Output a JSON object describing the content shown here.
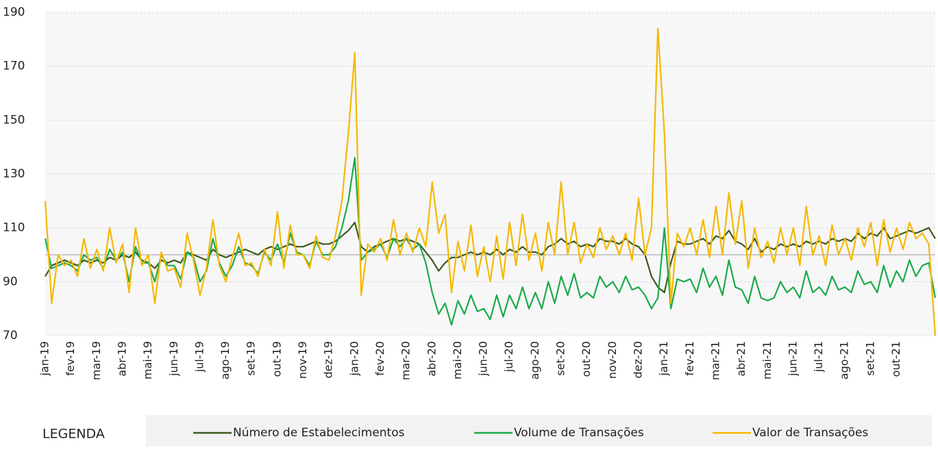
{
  "chart_data": {
    "type": "line",
    "legend_title": "LEGENDA",
    "ylim": [
      70,
      190
    ],
    "yticks": [
      70,
      90,
      110,
      130,
      150,
      170,
      190
    ],
    "grid": true,
    "hline": 100,
    "categories": [
      "jan-19",
      null,
      null,
      null,
      "fev-19",
      null,
      null,
      null,
      "mar-19",
      null,
      null,
      null,
      "abr-19",
      null,
      null,
      null,
      "mai-19",
      null,
      null,
      null,
      "jun-19",
      null,
      null,
      null,
      "jul-19",
      null,
      null,
      null,
      "ago-19",
      null,
      null,
      null,
      "set-19",
      null,
      null,
      null,
      "out-19",
      null,
      null,
      null,
      "nov-19",
      null,
      null,
      null,
      "dez-19",
      null,
      null,
      null,
      "jan-20",
      null,
      null,
      null,
      "fev-20",
      null,
      null,
      null,
      "mar-20",
      null,
      null,
      null,
      "abr-20",
      null,
      null,
      null,
      "mai-20",
      null,
      null,
      null,
      "jun-20",
      null,
      null,
      null,
      "jul-20",
      null,
      null,
      null,
      "ago-20",
      null,
      null,
      null,
      "set-20",
      null,
      null,
      null,
      "out-20",
      null,
      null,
      null,
      "nov-20",
      null,
      null,
      null,
      "dez-20",
      null,
      null,
      null,
      "jan-21",
      null,
      null,
      null,
      "fev-21",
      null,
      null,
      null,
      "mar-21",
      null,
      null,
      null,
      "abr-21",
      null,
      null,
      null,
      "mai-21",
      null,
      null,
      null,
      "jun-21",
      null,
      null,
      null,
      "jul-21",
      null,
      null,
      null,
      "ago-21",
      null,
      null,
      null,
      "set-21",
      null,
      null,
      null,
      "out-21",
      null,
      null,
      null,
      null,
      null,
      null
    ],
    "series": [
      {
        "name": "Número de Estabelecimentos",
        "color": "#3d5a1e",
        "values": [
          92,
          96,
          97,
          98,
          97,
          96,
          98,
          97,
          98,
          97,
          99,
          98,
          100,
          99,
          101,
          98,
          97,
          95,
          98,
          97,
          98,
          97,
          101,
          100,
          99,
          98,
          102,
          100,
          99,
          100,
          101,
          102,
          101,
          100,
          102,
          103,
          102,
          103,
          104,
          103,
          103,
          104,
          105,
          104,
          104,
          105,
          107,
          109,
          112,
          103,
          101,
          103,
          104,
          105,
          106,
          105,
          106,
          105,
          104,
          101,
          98,
          94,
          97,
          99,
          99,
          100,
          101,
          100,
          101,
          100,
          102,
          100,
          102,
          101,
          103,
          101,
          101,
          100,
          103,
          104,
          106,
          104,
          105,
          103,
          104,
          103,
          106,
          105,
          105,
          104,
          106,
          104,
          103,
          100,
          92,
          88,
          86,
          97,
          105,
          104,
          104,
          105,
          106,
          104,
          107,
          106,
          109,
          105,
          104,
          102,
          106,
          101,
          103,
          102,
          104,
          103,
          104,
          103,
          105,
          104,
          105,
          104,
          106,
          105,
          106,
          105,
          108,
          106,
          108,
          107,
          110,
          106,
          107,
          108,
          109,
          108,
          109,
          110,
          106
        ]
      },
      {
        "name": "Volume de Transações",
        "color": "#1aaa4a",
        "values": [
          106,
          95,
          96,
          97,
          96,
          94,
          100,
          98,
          99,
          95,
          102,
          98,
          101,
          90,
          103,
          97,
          97,
          90,
          100,
          96,
          96,
          91,
          101,
          99,
          90,
          94,
          106,
          97,
          92,
          96,
          103,
          97,
          96,
          93,
          101,
          98,
          104,
          97,
          108,
          101,
          100,
          96,
          105,
          100,
          100,
          103,
          110,
          120,
          136,
          98,
          101,
          102,
          104,
          99,
          106,
          103,
          106,
          102,
          104,
          97,
          86,
          78,
          82,
          74,
          83,
          78,
          85,
          79,
          80,
          76,
          85,
          77,
          85,
          80,
          88,
          80,
          86,
          80,
          90,
          82,
          92,
          85,
          93,
          84,
          86,
          84,
          92,
          88,
          90,
          86,
          92,
          87,
          88,
          85,
          80,
          84,
          110,
          80,
          91,
          90,
          91,
          86,
          95,
          88,
          92,
          85,
          98,
          88,
          87,
          82,
          92,
          84,
          83,
          84,
          90,
          86,
          88,
          84,
          94,
          86,
          88,
          85,
          92,
          87,
          88,
          86,
          94,
          89,
          90,
          86,
          96,
          88,
          94,
          90,
          98,
          92,
          96,
          97,
          84
        ]
      },
      {
        "name": "Valor de Transações",
        "color": "#f5b800",
        "values": [
          120,
          82,
          100,
          96,
          98,
          92,
          106,
          95,
          102,
          94,
          110,
          97,
          104,
          86,
          110,
          96,
          100,
          82,
          101,
          94,
          95,
          88,
          108,
          98,
          85,
          95,
          113,
          96,
          90,
          99,
          108,
          96,
          97,
          92,
          102,
          96,
          116,
          95,
          111,
          100,
          100,
          95,
          107,
          99,
          98,
          107,
          120,
          145,
          175,
          85,
          104,
          101,
          106,
          98,
          113,
          100,
          108,
          101,
          110,
          103,
          127,
          108,
          115,
          86,
          105,
          94,
          111,
          92,
          103,
          90,
          107,
          91,
          112,
          96,
          115,
          98,
          108,
          94,
          112,
          100,
          127,
          100,
          112,
          97,
          104,
          99,
          110,
          102,
          107,
          100,
          108,
          98,
          121,
          100,
          110,
          184,
          145,
          82,
          108,
          103,
          110,
          100,
          113,
          99,
          118,
          100,
          123,
          104,
          120,
          95,
          110,
          99,
          105,
          97,
          110,
          100,
          110,
          96,
          118,
          100,
          107,
          96,
          111,
          100,
          106,
          98,
          110,
          103,
          112,
          96,
          113,
          101,
          110,
          102,
          112,
          106,
          108,
          104,
          70
        ]
      }
    ]
  }
}
